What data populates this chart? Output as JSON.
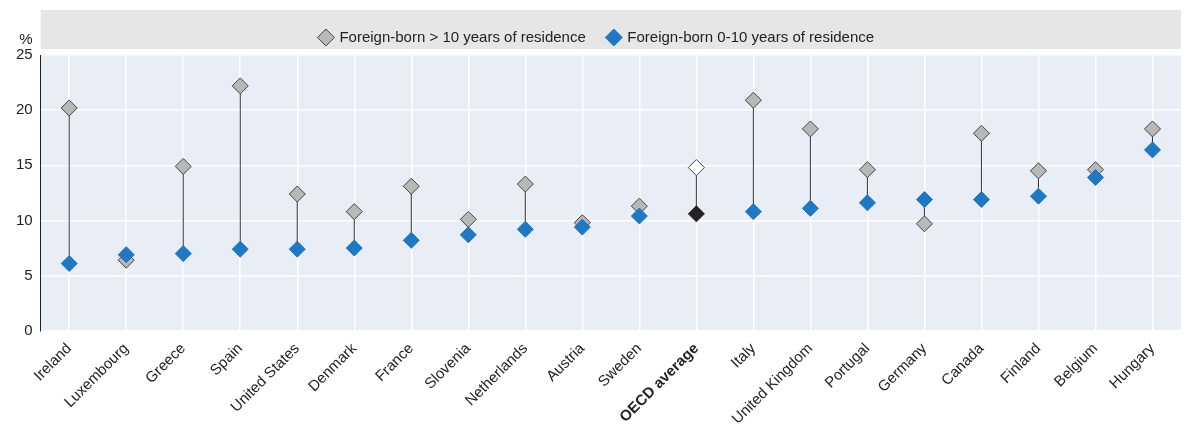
{
  "chart_data": {
    "type": "scatter",
    "ylabel": "%",
    "categories": [
      "Ireland",
      "Luxembourg",
      "Greece",
      "Spain",
      "United States",
      "Denmark",
      "France",
      "Slovenia",
      "Netherlands",
      "Austria",
      "Sweden",
      "OECD average",
      "Italy",
      "United Kingdom",
      "Portugal",
      "Germany",
      "Canada",
      "Finland",
      "Belgium",
      "Hungary"
    ],
    "series": [
      {
        "name": "Foreign-born > 10 years of residence",
        "color": "#b8b8b8",
        "colors": [
          "#b8b8b8",
          "#b8b8b8",
          "#b8b8b8",
          "#b8b8b8",
          "#b8b8b8",
          "#b8b8b8",
          "#b8b8b8",
          "#b8b8b8",
          "#b8b8b8",
          "#b8b8b8",
          "#b8b8b8",
          "#ffffff",
          "#b8b8b8",
          "#b8b8b8",
          "#b8b8b8",
          "#b8b8b8",
          "#b8b8b8",
          "#b8b8b8",
          "#b8b8b8",
          "#b8b8b8"
        ],
        "values": [
          20.2,
          6.4,
          14.9,
          22.2,
          12.4,
          10.8,
          13.1,
          10.1,
          13.3,
          9.8,
          11.3,
          14.8,
          20.9,
          18.3,
          14.6,
          9.7,
          17.9,
          14.5,
          14.6,
          18.3
        ]
      },
      {
        "name": "Foreign-born 0-10 years of residence",
        "color": "#1f78c1",
        "colors": [
          "#1f78c1",
          "#1f78c1",
          "#1f78c1",
          "#1f78c1",
          "#1f78c1",
          "#1f78c1",
          "#1f78c1",
          "#1f78c1",
          "#1f78c1",
          "#1f78c1",
          "#1f78c1",
          "#222222",
          "#1f78c1",
          "#1f78c1",
          "#1f78c1",
          "#1f78c1",
          "#1f78c1",
          "#1f78c1",
          "#1f78c1",
          "#1f78c1"
        ],
        "values": [
          6.1,
          6.9,
          7.0,
          7.4,
          7.4,
          7.5,
          8.2,
          8.7,
          9.2,
          9.4,
          10.4,
          10.6,
          10.8,
          11.1,
          11.6,
          11.9,
          11.9,
          12.2,
          13.9,
          16.4
        ]
      }
    ],
    "ylim": [
      0,
      25
    ],
    "yticks": [
      0,
      5,
      10,
      15,
      20,
      25
    ],
    "grid": true,
    "legend": "top",
    "marker": "diamond"
  }
}
